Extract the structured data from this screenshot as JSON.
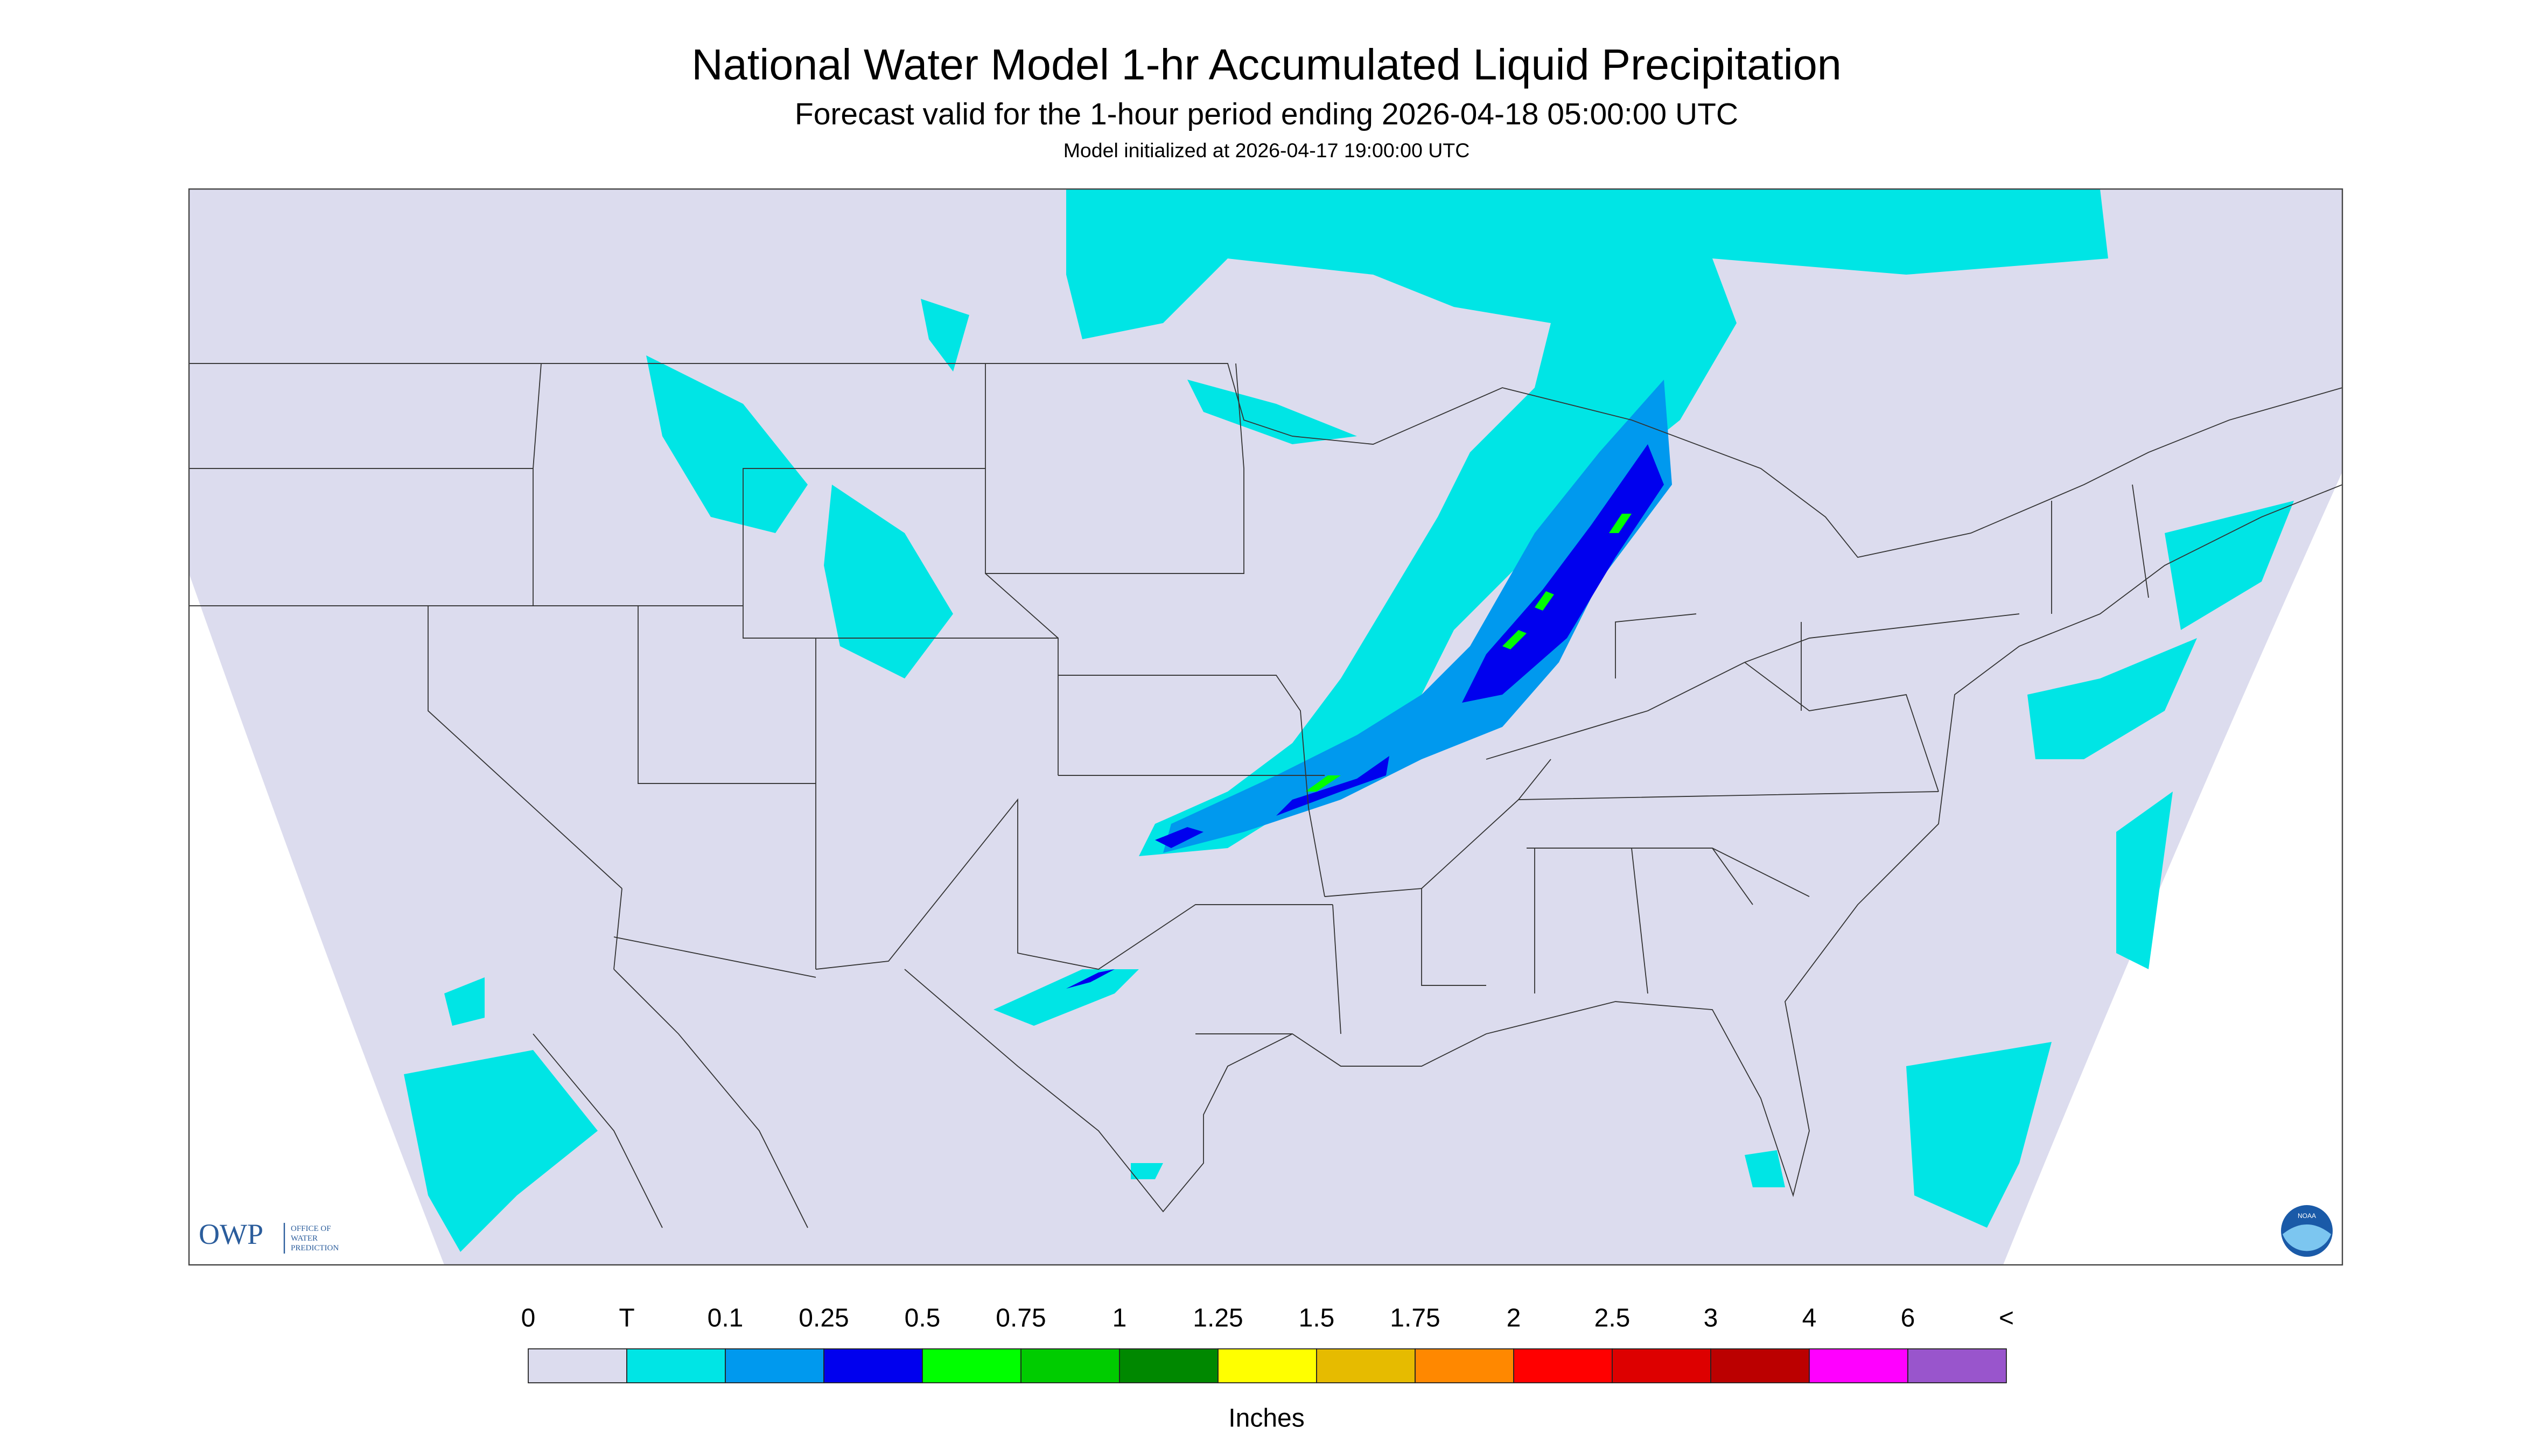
{
  "header": {
    "title": "National Water Model 1-hr Accumulated Liquid Precipitation",
    "subtitle": "Forecast valid for the 1-hour period ending 2026-04-18 05:00:00 UTC",
    "initialized": "Model initialized at 2026-04-17 19:00:00 UTC"
  },
  "legend": {
    "labels": [
      "0",
      "T",
      "0.1",
      "0.25",
      "0.5",
      "0.75",
      "1",
      "1.25",
      "1.5",
      "1.75",
      "2",
      "2.5",
      "3",
      "4",
      "6",
      "<"
    ],
    "colors": [
      "#dcdcee",
      "#00e5e5",
      "#0099ee",
      "#0000ee",
      "#00ff00",
      "#00cc00",
      "#008800",
      "#ffff00",
      "#e6bb00",
      "#ff8800",
      "#ff0000",
      "#dd0000",
      "#bb0000",
      "#ff00ff",
      "#9955cc"
    ],
    "unit": "Inches"
  },
  "logos": {
    "owp": "OWP",
    "owp_name": [
      "OFFICE OF",
      "WATER",
      "PREDICTION"
    ],
    "noaa": "NOAA"
  }
}
